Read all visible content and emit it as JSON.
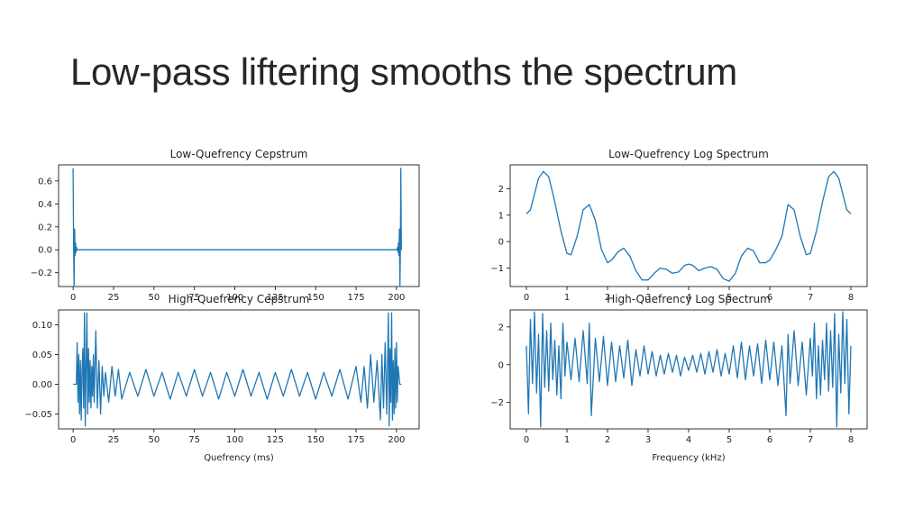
{
  "slide": {
    "title": "Low-pass liftering smooths the spectrum"
  },
  "style": {
    "line_color": "#1f77b4",
    "axes_color": "#000000"
  },
  "chart_data": [
    {
      "id": "low_cep",
      "type": "line",
      "title": "Low-Quefrency Cepstrum",
      "xlabel": "",
      "ylabel": "",
      "xlim": [
        -9,
        214
      ],
      "ylim": [
        -0.32,
        0.74
      ],
      "xticks": [
        0,
        25,
        50,
        75,
        100,
        125,
        150,
        175,
        200
      ],
      "xtick_labels": [
        "0",
        "25",
        "50",
        "75",
        "100",
        "125",
        "150",
        "175",
        "200"
      ],
      "yticks": [
        -0.2,
        0.0,
        0.2,
        0.4,
        0.6
      ],
      "ytick_labels": [
        "−0.2",
        "0.0",
        "0.2",
        "0.4",
        "0.6"
      ],
      "series": [
        {
          "x": [
            0,
            0.3,
            0.6,
            0.9,
            1.2,
            1.5,
            1.8,
            2.1,
            2.5,
            3,
            100,
            200.2,
            200.6,
            200.9,
            201.2,
            201.5,
            201.8,
            202.1,
            202.4,
            202.7,
            203
          ],
          "y": [
            0.71,
            0.0,
            -0.31,
            0.18,
            -0.05,
            0.06,
            -0.02,
            0.02,
            0.0,
            0.0,
            0.0,
            0.0,
            0.02,
            -0.02,
            0.06,
            -0.05,
            0.18,
            -0.31,
            0.0,
            0.71,
            0.0
          ]
        }
      ]
    },
    {
      "id": "high_cep",
      "type": "line",
      "title": "High-Quefrency Cepstrum",
      "xlabel": "Quefrency (ms)",
      "ylabel": "",
      "xlim": [
        -9,
        214
      ],
      "ylim": [
        -0.075,
        0.125
      ],
      "xticks": [
        0,
        25,
        50,
        75,
        100,
        125,
        150,
        175,
        200
      ],
      "xtick_labels": [
        "0",
        "25",
        "50",
        "75",
        "100",
        "125",
        "150",
        "175",
        "200"
      ],
      "yticks": [
        -0.05,
        0.0,
        0.05,
        0.1
      ],
      "ytick_labels": [
        "−0.05",
        "0.00",
        "0.05",
        "0.10"
      ],
      "series": [
        {
          "x": [
            0,
            2,
            2.5,
            3,
            3.5,
            4,
            4.5,
            5,
            5.5,
            6,
            6.5,
            7,
            7.5,
            8,
            8.5,
            9,
            9.5,
            10,
            10.5,
            11,
            11.5,
            12,
            12.5,
            13,
            14,
            15,
            16,
            17,
            18,
            19,
            20,
            22,
            24,
            26,
            28,
            30,
            35,
            40,
            45,
            50,
            55,
            60,
            65,
            70,
            75,
            80,
            85,
            90,
            95,
            100,
            105,
            110,
            115,
            120,
            125,
            130,
            135,
            140,
            145,
            150,
            155,
            160,
            165,
            170,
            175,
            178,
            180,
            182,
            184,
            186,
            188,
            190,
            191,
            192,
            193,
            194,
            195,
            195.5,
            196,
            196.5,
            197,
            197.5,
            198,
            198.5,
            199,
            199.5,
            200,
            200.5,
            201,
            202,
            203
          ],
          "y": [
            0.0,
            0.0,
            0.07,
            -0.03,
            0.05,
            -0.05,
            0.04,
            -0.06,
            0.02,
            0.06,
            -0.04,
            0.12,
            -0.07,
            0.03,
            0.12,
            -0.05,
            0.06,
            -0.03,
            0.04,
            -0.04,
            0.03,
            -0.02,
            0.05,
            -0.03,
            0.09,
            -0.04,
            0.04,
            -0.05,
            0.03,
            -0.02,
            0.02,
            -0.03,
            0.03,
            -0.02,
            0.025,
            -0.025,
            0.02,
            -0.02,
            0.025,
            -0.02,
            0.02,
            -0.025,
            0.02,
            -0.02,
            0.025,
            -0.02,
            0.02,
            -0.025,
            0.02,
            -0.02,
            0.025,
            -0.02,
            0.02,
            -0.025,
            0.02,
            -0.02,
            0.025,
            -0.02,
            0.02,
            -0.025,
            0.02,
            -0.02,
            0.025,
            -0.025,
            0.03,
            -0.03,
            0.03,
            -0.04,
            0.05,
            -0.03,
            0.04,
            -0.06,
            0.05,
            -0.04,
            0.07,
            -0.05,
            0.12,
            -0.07,
            0.06,
            -0.03,
            0.12,
            -0.06,
            0.04,
            -0.05,
            0.06,
            -0.04,
            0.07,
            -0.03,
            0.03,
            0.0,
            0.0
          ]
        }
      ]
    },
    {
      "id": "low_spec",
      "type": "line",
      "title": "Low-Quefrency Log Spectrum",
      "xlabel": "",
      "ylabel": "",
      "xlim": [
        -0.4,
        8.4
      ],
      "ylim": [
        -1.7,
        2.9
      ],
      "xticks": [
        0,
        1,
        2,
        3,
        4,
        5,
        6,
        7,
        8
      ],
      "xtick_labels": [
        "0",
        "1",
        "2",
        "3",
        "4",
        "5",
        "6",
        "7",
        "8"
      ],
      "yticks": [
        -1,
        0,
        1,
        2
      ],
      "ytick_labels": [
        "−1",
        "0",
        "1",
        "2"
      ],
      "series": [
        {
          "x": [
            0.0,
            0.1,
            0.2,
            0.3,
            0.42,
            0.55,
            0.7,
            0.85,
            1.0,
            1.1,
            1.25,
            1.4,
            1.55,
            1.7,
            1.85,
            2.0,
            2.1,
            2.25,
            2.4,
            2.55,
            2.7,
            2.85,
            3.0,
            3.15,
            3.3,
            3.45,
            3.6,
            3.75,
            3.9,
            4.0,
            4.1,
            4.25,
            4.4,
            4.55,
            4.7,
            4.85,
            5.0,
            5.15,
            5.3,
            5.45,
            5.6,
            5.75,
            5.9,
            6.0,
            6.15,
            6.3,
            6.45,
            6.6,
            6.75,
            6.9,
            7.0,
            7.15,
            7.3,
            7.45,
            7.58,
            7.7,
            7.8,
            7.9,
            8.0
          ],
          "y": [
            1.05,
            1.2,
            1.8,
            2.4,
            2.65,
            2.45,
            1.5,
            0.4,
            -0.45,
            -0.5,
            0.2,
            1.2,
            1.4,
            0.8,
            -0.3,
            -0.8,
            -0.7,
            -0.4,
            -0.25,
            -0.55,
            -1.1,
            -1.45,
            -1.45,
            -1.2,
            -1.0,
            -1.05,
            -1.2,
            -1.15,
            -0.9,
            -0.85,
            -0.9,
            -1.1,
            -1.0,
            -0.95,
            -1.05,
            -1.4,
            -1.5,
            -1.2,
            -0.55,
            -0.25,
            -0.35,
            -0.8,
            -0.8,
            -0.7,
            -0.3,
            0.2,
            1.4,
            1.2,
            0.2,
            -0.5,
            -0.45,
            0.4,
            1.5,
            2.45,
            2.65,
            2.4,
            1.8,
            1.2,
            1.05
          ]
        }
      ]
    },
    {
      "id": "high_spec",
      "type": "line",
      "title": "High-Quefrency Log Spectrum",
      "xlabel": "Frequency (kHz)",
      "ylabel": "",
      "xlim": [
        -0.4,
        8.4
      ],
      "ylim": [
        -3.4,
        2.9
      ],
      "xticks": [
        0,
        1,
        2,
        3,
        4,
        5,
        6,
        7,
        8
      ],
      "xtick_labels": [
        "0",
        "1",
        "2",
        "3",
        "4",
        "5",
        "6",
        "7",
        "8"
      ],
      "yticks": [
        -2,
        0,
        2
      ],
      "ytick_labels": [
        "−2",
        "0",
        "2"
      ],
      "series": [
        {
          "x": [
            0.0,
            0.05,
            0.1,
            0.15,
            0.2,
            0.25,
            0.3,
            0.35,
            0.4,
            0.45,
            0.5,
            0.55,
            0.6,
            0.65,
            0.7,
            0.75,
            0.8,
            0.85,
            0.9,
            0.95,
            1.0,
            1.1,
            1.2,
            1.3,
            1.4,
            1.5,
            1.55,
            1.6,
            1.7,
            1.8,
            1.9,
            2.0,
            2.1,
            2.2,
            2.3,
            2.4,
            2.5,
            2.6,
            2.7,
            2.8,
            2.9,
            3.0,
            3.1,
            3.2,
            3.3,
            3.4,
            3.5,
            3.6,
            3.7,
            3.8,
            3.9,
            4.0,
            4.1,
            4.2,
            4.3,
            4.4,
            4.5,
            4.6,
            4.7,
            4.8,
            4.9,
            5.0,
            5.1,
            5.2,
            5.3,
            5.4,
            5.5,
            5.6,
            5.7,
            5.8,
            5.9,
            6.0,
            6.1,
            6.2,
            6.3,
            6.4,
            6.45,
            6.5,
            6.6,
            6.7,
            6.8,
            6.9,
            7.0,
            7.05,
            7.1,
            7.15,
            7.2,
            7.25,
            7.3,
            7.35,
            7.4,
            7.45,
            7.5,
            7.55,
            7.6,
            7.65,
            7.7,
            7.75,
            7.8,
            7.85,
            7.9,
            7.95,
            8.0
          ],
          "y": [
            1.0,
            -2.6,
            2.4,
            -1.0,
            2.8,
            -1.5,
            1.6,
            -3.3,
            2.7,
            -1.2,
            1.8,
            -1.4,
            2.2,
            -0.8,
            1.3,
            -1.6,
            1.0,
            -1.8,
            2.2,
            -0.6,
            1.2,
            -0.8,
            1.4,
            -0.9,
            1.8,
            -1.0,
            2.2,
            -2.7,
            1.4,
            -0.9,
            1.5,
            -1.1,
            1.2,
            -0.9,
            1.0,
            -0.7,
            1.3,
            -1.1,
            0.8,
            -0.6,
            1.0,
            -0.5,
            0.7,
            -0.6,
            0.5,
            -0.5,
            0.6,
            -0.4,
            0.5,
            -0.6,
            0.4,
            -0.3,
            0.5,
            -0.4,
            0.6,
            -0.5,
            0.7,
            -0.4,
            0.8,
            -0.6,
            0.6,
            -0.5,
            1.0,
            -0.7,
            1.2,
            -0.8,
            1.0,
            -0.6,
            1.1,
            -1.0,
            1.3,
            -0.8,
            1.2,
            -1.1,
            1.0,
            -2.7,
            1.6,
            -1.0,
            1.8,
            -1.1,
            1.2,
            -1.6,
            1.4,
            -0.6,
            2.2,
            -1.8,
            1.0,
            -1.6,
            1.3,
            -0.8,
            2.2,
            -1.4,
            1.8,
            -1.2,
            2.7,
            -3.3,
            1.6,
            -1.5,
            2.8,
            -1.0,
            2.4,
            -2.6,
            1.0
          ]
        }
      ]
    }
  ]
}
